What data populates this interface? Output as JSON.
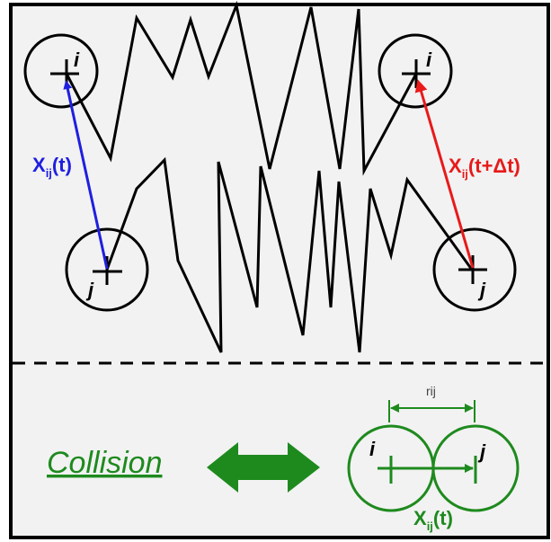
{
  "top": {
    "left_pair": {
      "particle_i": "i",
      "particle_j": "j",
      "vector_label": {
        "main": "X",
        "sub": "ij",
        "arg": "(t)"
      },
      "color": "#1f1fe0"
    },
    "right_pair": {
      "particle_i": "i",
      "particle_j": "j",
      "vector_label": {
        "main": "X",
        "sub": "ij",
        "arg": "(t+Δt)"
      },
      "color": "#e81a1a"
    }
  },
  "bottom": {
    "collision_label": "Collision",
    "distance_label": "rij",
    "particle_i": "i",
    "particle_j": "j",
    "vector_label": {
      "main": "X",
      "sub": "ij",
      "arg": "(t)"
    },
    "color": "#1e8a1e"
  },
  "colors": {
    "background": "#f2f2f2",
    "outline": "#000000",
    "trajectory": "#000000"
  }
}
